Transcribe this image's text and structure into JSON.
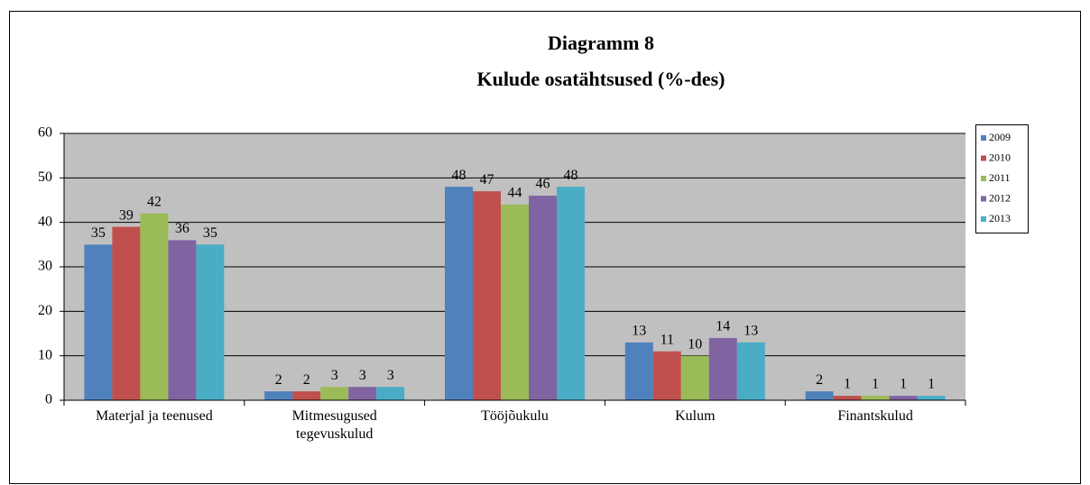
{
  "chart_data": {
    "type": "bar",
    "title": "Diagramm 8",
    "subtitle": "Kulude osatähtsused (%-des)",
    "categories": [
      "Materjal ja teenused",
      "Mitmesugused tegevuskulud",
      "Tööjõukulu",
      "Kulum",
      "Finantskulud"
    ],
    "series": [
      {
        "name": "2009",
        "color": "#4f81bd",
        "values": [
          35,
          2,
          48,
          13,
          2
        ]
      },
      {
        "name": "2010",
        "color": "#c0504d",
        "values": [
          39,
          2,
          47,
          11,
          1
        ]
      },
      {
        "name": "2011",
        "color": "#9bbb59",
        "values": [
          42,
          3,
          44,
          10,
          1
        ]
      },
      {
        "name": "2012",
        "color": "#8064a2",
        "values": [
          36,
          3,
          46,
          14,
          1
        ]
      },
      {
        "name": "2013",
        "color": "#4bacc6",
        "values": [
          35,
          3,
          48,
          13,
          1
        ]
      }
    ],
    "ylim": [
      0,
      60
    ],
    "yticks": [
      0,
      10,
      20,
      30,
      40,
      50,
      60
    ],
    "grid": true,
    "legend": "right"
  }
}
